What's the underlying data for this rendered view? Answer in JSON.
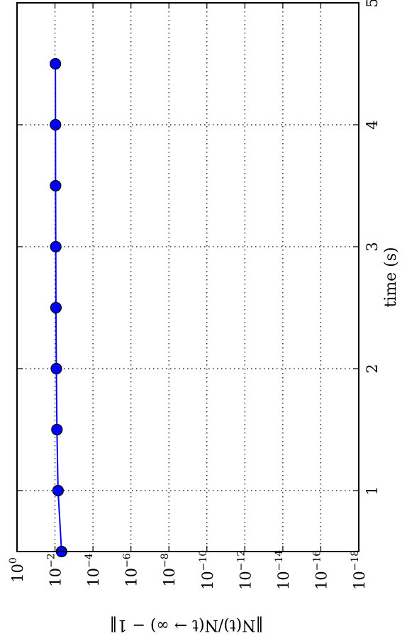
{
  "chart_data": {
    "type": "line",
    "orientation": "rotated-90",
    "xlabel": "time (s)",
    "ylabel": "‖N(t)/N(t → ∞) − 1‖",
    "xlim": [
      0.5,
      5
    ],
    "ylim_exponent": [
      0,
      -18
    ],
    "yscale": "log",
    "grid": true,
    "x_ticks": [
      1,
      2,
      3,
      4,
      5
    ],
    "x_tick_labels": [
      "1",
      "2",
      "3",
      "4",
      "5"
    ],
    "y_tick_exponents": [
      0,
      -2,
      -4,
      -6,
      -8,
      -10,
      -12,
      -14,
      -16,
      -18
    ],
    "y_tick_base": "10",
    "y_tick_labels": [
      "0",
      "−2",
      "−4",
      "−6",
      "−8",
      "−10",
      "−12",
      "−14",
      "−16",
      "−18"
    ],
    "series": [
      {
        "color": "#0000ff",
        "marker": "circle",
        "x": [
          0.5,
          1.0,
          1.5,
          2.0,
          2.5,
          3.0,
          3.5,
          4.0,
          4.5
        ],
        "y": [
          0.0045,
          0.0069,
          0.0079,
          0.0085,
          0.0089,
          0.0091,
          0.0093,
          0.0094,
          0.0095
        ]
      }
    ]
  }
}
